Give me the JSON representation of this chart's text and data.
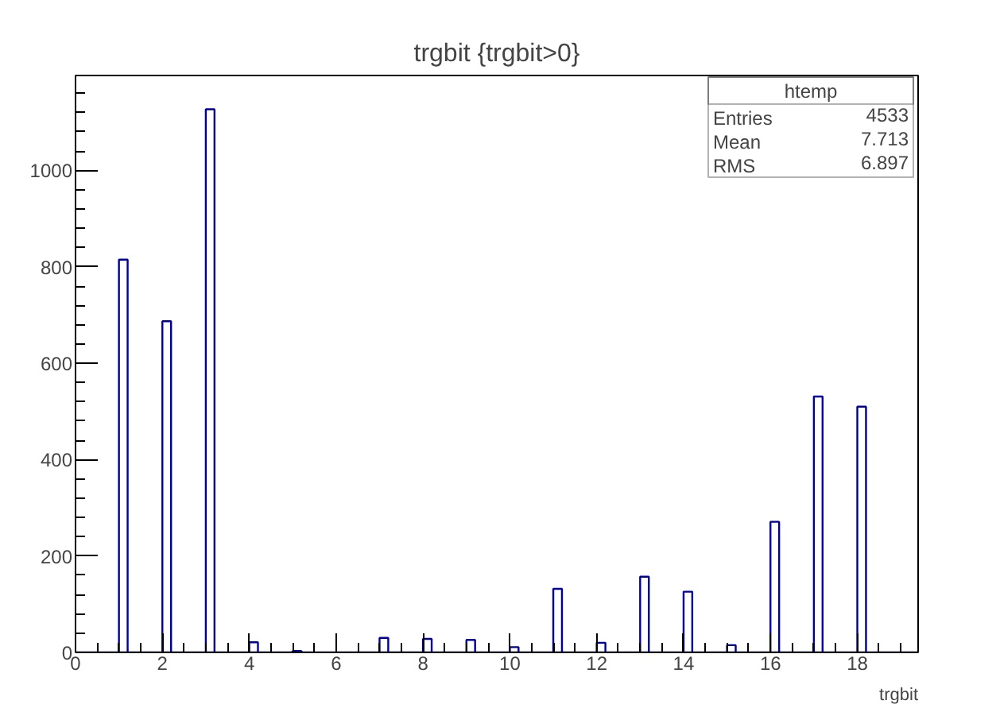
{
  "chart_data": {
    "type": "histogram",
    "title": "trgbit {trgbit>0}",
    "xlabel": "trgbit",
    "bins": [
      0,
      0.2,
      0.4,
      0.6,
      0.8,
      1,
      1.2,
      1.4,
      1.6,
      1.8,
      2,
      2.2,
      2.4,
      2.6,
      2.8,
      3,
      3.2,
      3.4,
      3.6,
      3.8,
      4,
      4.2,
      4.4,
      4.6,
      4.8,
      5,
      5.2,
      5.4,
      5.6,
      5.8,
      6,
      6.2,
      6.4,
      6.6,
      6.8,
      7,
      7.2,
      7.4,
      7.6,
      7.8,
      8,
      8.2,
      8.4,
      8.6,
      8.8,
      9,
      9.2,
      9.4,
      9.6,
      9.8,
      10,
      10.2,
      10.4,
      10.6,
      10.8,
      11,
      11.2,
      11.4,
      11.6,
      11.8,
      12,
      12.2,
      12.4,
      12.6,
      12.8,
      13,
      13.2,
      13.4,
      13.6,
      13.8,
      14,
      14.2,
      14.4,
      14.6,
      14.8,
      15,
      15.2,
      15.4,
      15.6,
      15.8,
      16,
      16.2,
      16.4,
      16.6,
      16.8,
      17,
      17.2,
      17.4,
      17.6,
      17.8,
      18,
      18.2,
      18.4,
      18.6,
      18.8,
      19,
      19.2,
      19.4
    ],
    "values": [
      0,
      0,
      0,
      0,
      0,
      815,
      0,
      0,
      0,
      0,
      687,
      0,
      0,
      0,
      0,
      1127,
      0,
      0,
      0,
      0,
      21,
      0,
      0,
      0,
      0,
      3,
      0,
      0,
      0,
      0,
      0,
      0,
      0,
      0,
      0,
      30,
      0,
      0,
      0,
      0,
      28,
      0,
      0,
      0,
      0,
      26,
      0,
      0,
      0,
      0,
      11,
      0,
      0,
      0,
      0,
      132,
      0,
      0,
      0,
      0,
      20,
      0,
      0,
      0,
      0,
      157,
      0,
      0,
      0,
      0,
      126,
      0,
      0,
      0,
      0,
      15,
      0,
      0,
      0,
      0,
      271,
      0,
      0,
      0,
      0,
      531,
      0,
      0,
      0,
      0,
      510,
      0,
      0,
      0,
      0,
      0,
      0
    ],
    "color": "#000099",
    "xlim": [
      0,
      19.4
    ],
    "ylim": [
      0,
      1197
    ],
    "xticks": [
      0,
      2,
      4,
      6,
      8,
      10,
      12,
      14,
      16,
      18
    ],
    "yticks": [
      0,
      200,
      400,
      600,
      800,
      1000
    ],
    "grid": false,
    "annotations": [
      "htemp",
      "Entries",
      "4533",
      "Mean",
      "7.713",
      "RMS",
      "6.897"
    ]
  }
}
